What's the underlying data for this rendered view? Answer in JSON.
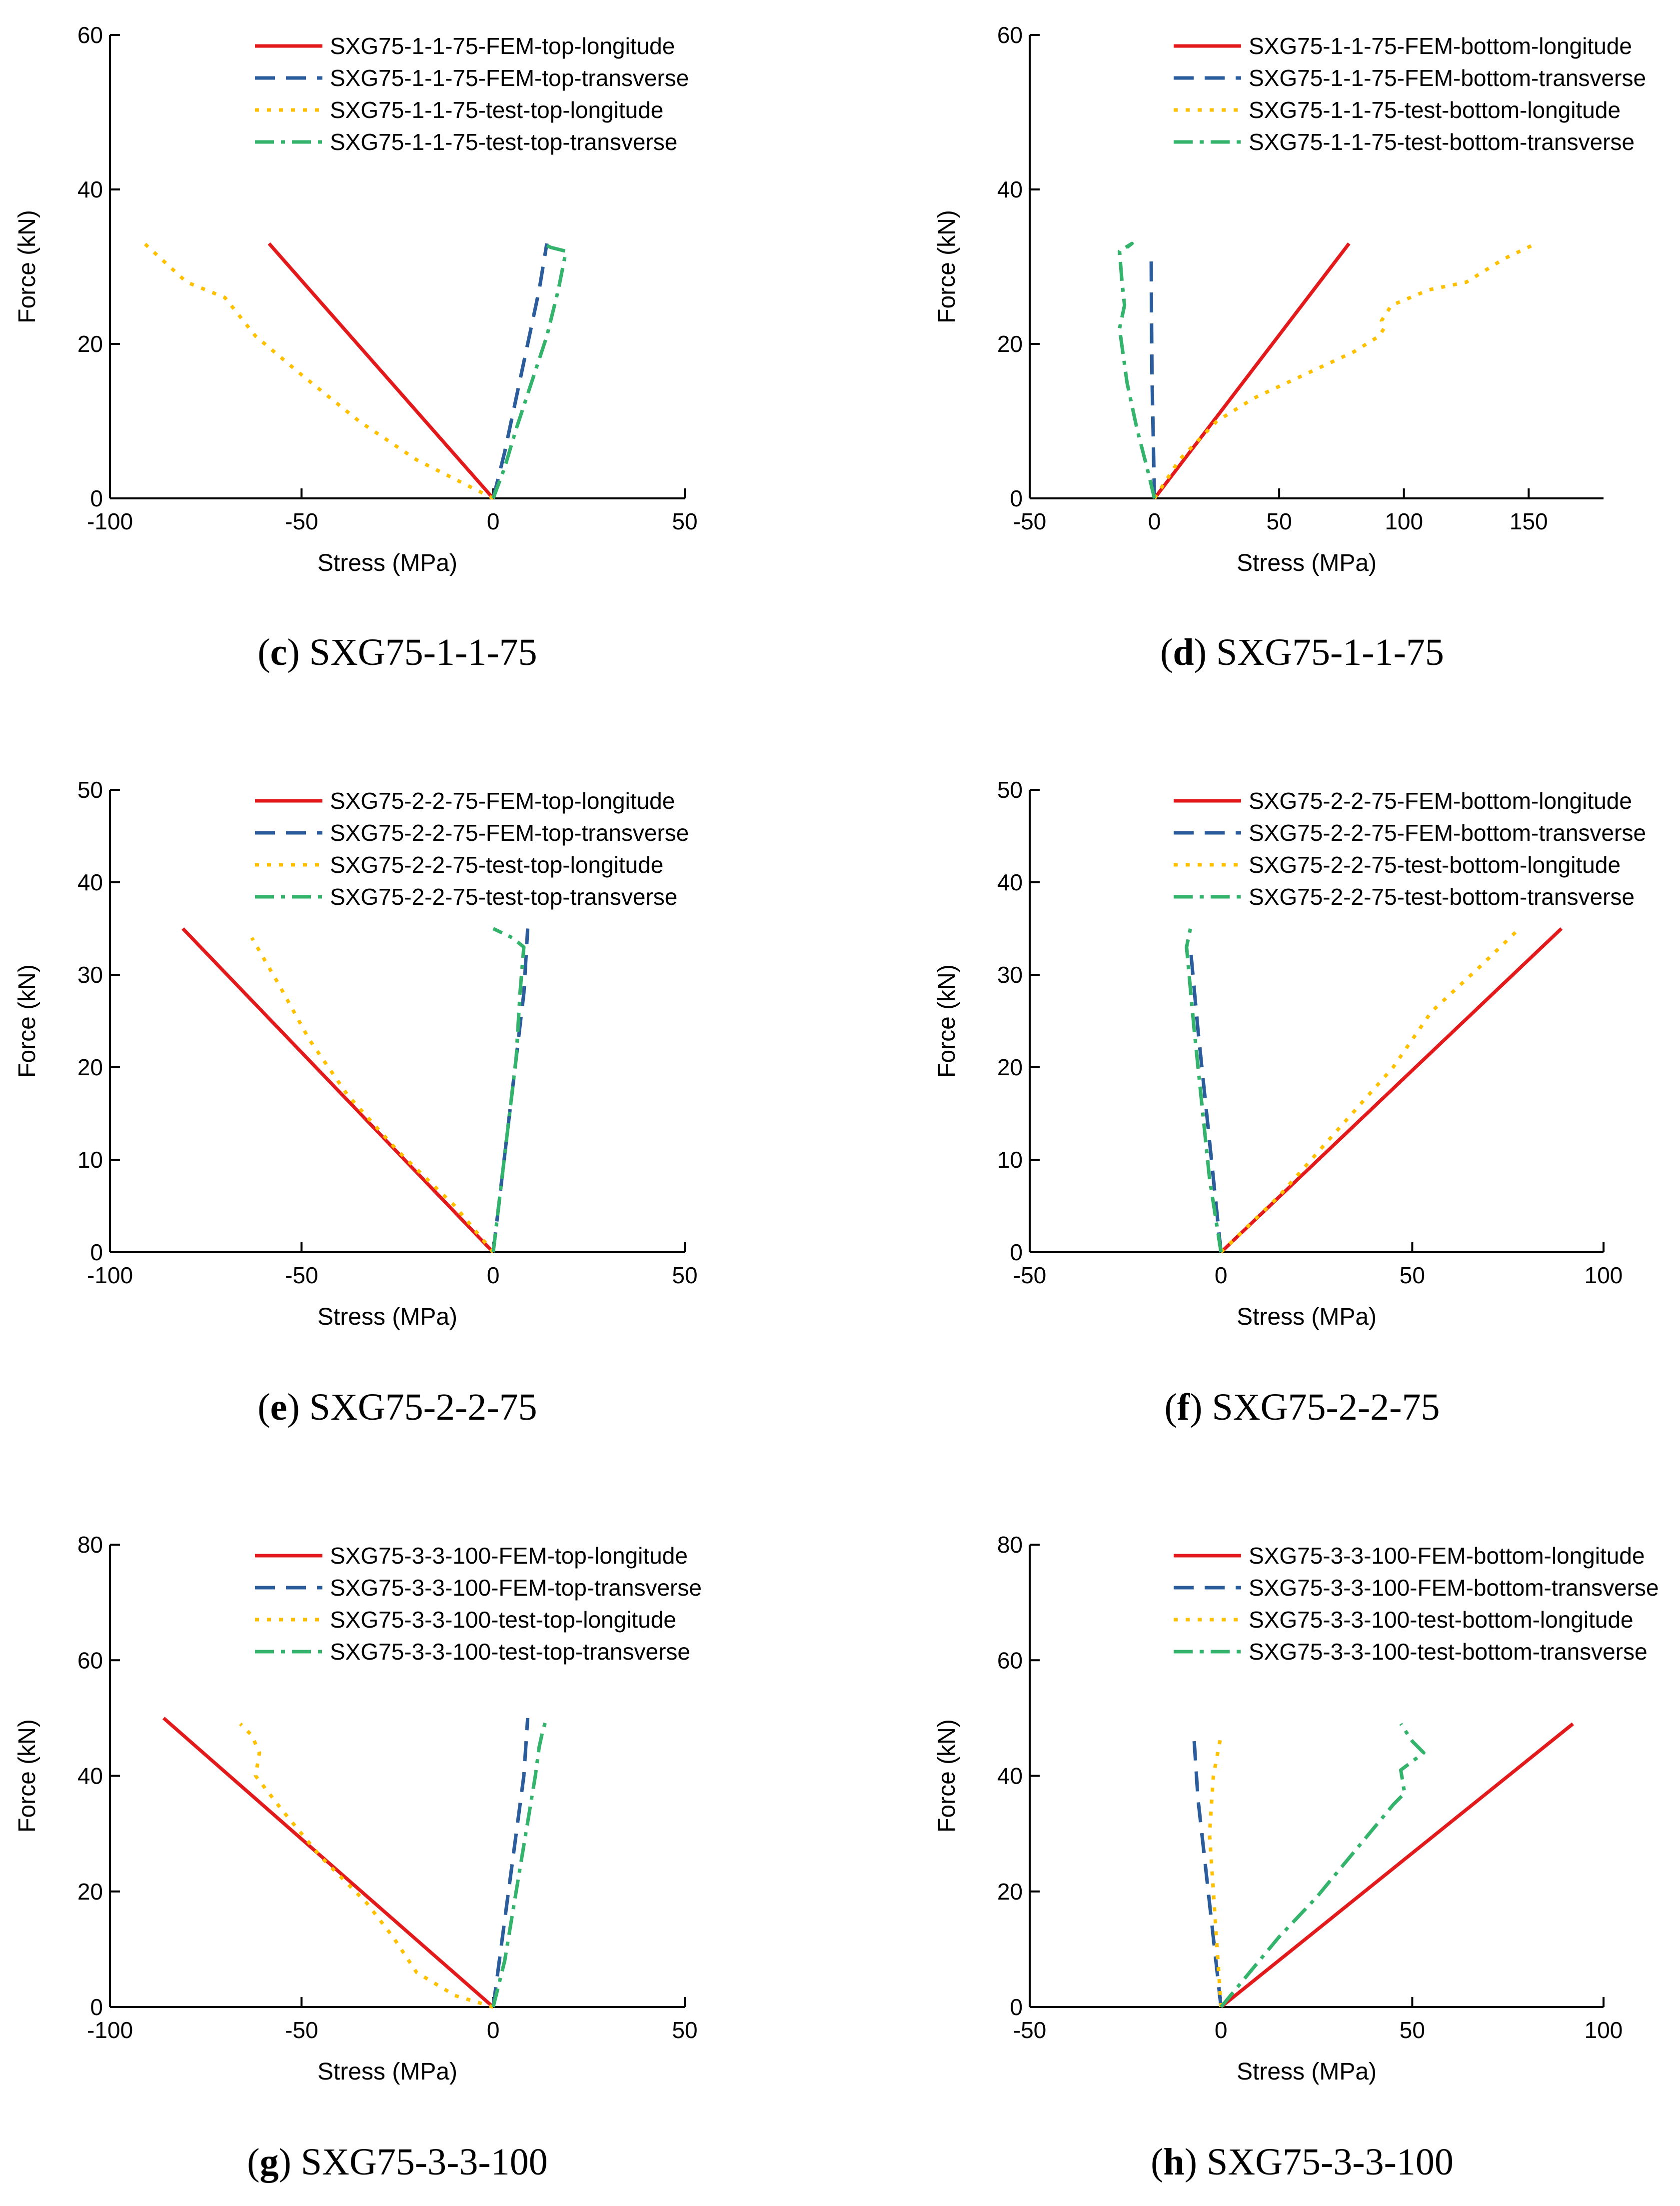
{
  "styles": {
    "FEM-longitude": {
      "color": "#e31a1c",
      "dash": "none"
    },
    "FEM-transverse": {
      "color": "#2b5d9c",
      "dash": "40,22"
    },
    "test-longitude": {
      "color": "#ffc000",
      "dash": "8,16"
    },
    "test-transverse": {
      "color": "#33b36b",
      "dash": "38,14,8,14"
    }
  },
  "chart_data": [
    {
      "type": "line",
      "caption_letter": "c",
      "caption_text": "SXG75-1-1-75",
      "xlabel": "Stress (MPa)",
      "ylabel": "Force (kN)",
      "xlim": [
        -100,
        50
      ],
      "ylim": [
        0,
        60
      ],
      "xticks": [
        -100,
        -50,
        0,
        50
      ],
      "yticks": [
        0,
        20,
        40,
        60
      ],
      "legend": "top-right",
      "series": [
        {
          "name": "SXG75-1-1-75-FEM-top-longitude",
          "style": "FEM-longitude",
          "x": [
            0,
            -58.5
          ],
          "y": [
            0,
            33
          ]
        },
        {
          "name": "SXG75-1-1-75-FEM-top-transverse",
          "style": "FEM-transverse",
          "x": [
            0,
            3,
            6,
            9,
            12,
            14
          ],
          "y": [
            0,
            6,
            13,
            20,
            27,
            33
          ]
        },
        {
          "name": "SXG75-1-1-75-test-top-longitude",
          "style": "test-longitude",
          "x": [
            0,
            -8,
            -20,
            -35,
            -50,
            -62,
            -70,
            -80,
            -91
          ],
          "y": [
            0,
            2,
            5,
            10,
            16,
            21,
            26,
            28,
            33
          ]
        },
        {
          "name": "SXG75-1-1-75-test-top-transverse",
          "style": "test-transverse",
          "x": [
            0,
            3,
            6,
            10,
            14,
            17,
            19,
            15,
            13
          ],
          "y": [
            0,
            4,
            9,
            15,
            21,
            27,
            32,
            32.5,
            33
          ]
        }
      ]
    },
    {
      "type": "line",
      "caption_letter": "d",
      "caption_text": "SXG75-1-1-75",
      "xlabel": "Stress (MPa)",
      "ylabel": "Force (kN)",
      "xlim": [
        -50,
        180
      ],
      "ylim": [
        0,
        60
      ],
      "xticks": [
        -50,
        0,
        50,
        100,
        150
      ],
      "yticks": [
        0,
        20,
        40,
        60
      ],
      "legend": "top-right",
      "series": [
        {
          "name": "SXG75-1-1-75-FEM-bottom-longitude",
          "style": "FEM-longitude",
          "x": [
            0,
            78
          ],
          "y": [
            0,
            33
          ]
        },
        {
          "name": "SXG75-1-1-75-FEM-bottom-transverse",
          "style": "FEM-transverse",
          "x": [
            0,
            -0.5,
            -1,
            -1.2,
            -1.3
          ],
          "y": [
            0,
            8,
            16,
            24,
            31
          ]
        },
        {
          "name": "SXG75-1-1-75-test-bottom-longitude",
          "style": "test-longitude",
          "x": [
            0,
            10,
            25,
            40,
            60,
            80,
            90,
            92,
            91,
            95,
            110,
            125,
            140,
            153
          ],
          "y": [
            0,
            5,
            10,
            13,
            16,
            19,
            21,
            22,
            23,
            25,
            27,
            28,
            31,
            33
          ]
        },
        {
          "name": "SXG75-1-1-75-test-bottom-transverse",
          "style": "test-transverse",
          "x": [
            0,
            -3,
            -7,
            -11,
            -14,
            -12,
            -13,
            -14,
            -9,
            -11
          ],
          "y": [
            0,
            4,
            9,
            15,
            22,
            25,
            28,
            32,
            33,
            32.5
          ]
        }
      ]
    },
    {
      "type": "line",
      "caption_letter": "e",
      "caption_text": "SXG75-2-2-75",
      "xlabel": "Stress (MPa)",
      "ylabel": "Force (kN)",
      "xlim": [
        -100,
        50
      ],
      "ylim": [
        0,
        50
      ],
      "xticks": [
        -100,
        -50,
        0,
        50
      ],
      "yticks": [
        0,
        10,
        20,
        30,
        40,
        50
      ],
      "legend": "top-right",
      "series": [
        {
          "name": "SXG75-2-2-75-FEM-top-longitude",
          "style": "FEM-longitude",
          "x": [
            0,
            -81
          ],
          "y": [
            0,
            35
          ]
        },
        {
          "name": "SXG75-2-2-75-FEM-top-transverse",
          "style": "FEM-transverse",
          "x": [
            0,
            2,
            4,
            6,
            8,
            9
          ],
          "y": [
            0,
            7,
            14,
            21,
            28,
            35
          ]
        },
        {
          "name": "SXG75-2-2-75-test-top-longitude",
          "style": "test-longitude",
          "x": [
            0,
            -10,
            -25,
            -38,
            -48,
            -56,
            -63
          ],
          "y": [
            0,
            5,
            11,
            17,
            23,
            29,
            34
          ]
        },
        {
          "name": "SXG75-2-2-75-test-top-transverse",
          "style": "test-transverse",
          "x": [
            0,
            2,
            4,
            6,
            7,
            8,
            5,
            0
          ],
          "y": [
            0,
            7,
            14,
            21,
            28,
            33,
            34,
            35
          ]
        }
      ]
    },
    {
      "type": "line",
      "caption_letter": "f",
      "caption_text": "SXG75-2-2-75",
      "xlabel": "Stress (MPa)",
      "ylabel": "Force (kN)",
      "xlim": [
        -50,
        100
      ],
      "ylim": [
        0,
        50
      ],
      "xticks": [
        -50,
        0,
        50,
        100
      ],
      "yticks": [
        0,
        10,
        20,
        30,
        40,
        50
      ],
      "legend": "top-right",
      "series": [
        {
          "name": "SXG75-2-2-75-FEM-bottom-longitude",
          "style": "FEM-longitude",
          "x": [
            0,
            89
          ],
          "y": [
            0,
            35
          ]
        },
        {
          "name": "SXG75-2-2-75-FEM-bottom-transverse",
          "style": "FEM-transverse",
          "x": [
            0,
            -2,
            -4,
            -6,
            -8
          ],
          "y": [
            0,
            8,
            16,
            24,
            33
          ]
        },
        {
          "name": "SXG75-2-2-75-test-bottom-longitude",
          "style": "test-longitude",
          "x": [
            0,
            15,
            30,
            45,
            55,
            68,
            78
          ],
          "y": [
            0,
            6,
            13,
            20,
            26,
            31,
            35
          ]
        },
        {
          "name": "SXG75-2-2-75-test-bottom-transverse",
          "style": "test-transverse",
          "x": [
            0,
            -3,
            -5,
            -7,
            -9,
            -8
          ],
          "y": [
            0,
            8,
            16,
            24,
            33,
            35
          ]
        }
      ]
    },
    {
      "type": "line",
      "caption_letter": "g",
      "caption_text": "SXG75-3-3-100",
      "xlabel": "Stress (MPa)",
      "ylabel": "Force (kN)",
      "xlim": [
        -100,
        50
      ],
      "ylim": [
        0,
        80
      ],
      "xticks": [
        -100,
        -50,
        0,
        50
      ],
      "yticks": [
        0,
        20,
        40,
        60,
        80
      ],
      "legend": "top-right",
      "series": [
        {
          "name": "SXG75-3-3-100-FEM-top-longitude",
          "style": "FEM-longitude",
          "x": [
            0,
            -86
          ],
          "y": [
            0,
            50
          ]
        },
        {
          "name": "SXG75-3-3-100-FEM-top-transverse",
          "style": "FEM-transverse",
          "x": [
            0,
            2,
            4,
            6,
            8,
            9
          ],
          "y": [
            0,
            10,
            20,
            30,
            40,
            50
          ]
        },
        {
          "name": "SXG75-3-3-100-test-top-longitude",
          "style": "test-longitude",
          "x": [
            0,
            -10,
            -20,
            -26,
            -33,
            -45,
            -55,
            -62,
            -61,
            -63,
            -66
          ],
          "y": [
            0,
            2,
            6,
            12,
            18,
            26,
            34,
            40,
            44,
            47,
            49
          ]
        },
        {
          "name": "SXG75-3-3-100-test-top-transverse",
          "style": "test-transverse",
          "x": [
            0,
            3,
            5,
            7,
            9,
            11,
            12,
            13,
            14
          ],
          "y": [
            0,
            8,
            16,
            24,
            32,
            40,
            45,
            48,
            50
          ]
        }
      ]
    },
    {
      "type": "line",
      "caption_letter": "h",
      "caption_text": "SXG75-3-3-100",
      "xlabel": "Stress (MPa)",
      "ylabel": "Force (kN)",
      "xlim": [
        -50,
        100
      ],
      "ylim": [
        0,
        80
      ],
      "xticks": [
        -50,
        0,
        50,
        100
      ],
      "yticks": [
        0,
        20,
        40,
        60,
        80
      ],
      "legend": "top-right",
      "series": [
        {
          "name": "SXG75-3-3-100-FEM-bottom-longitude",
          "style": "FEM-longitude",
          "x": [
            0,
            92
          ],
          "y": [
            0,
            49
          ]
        },
        {
          "name": "SXG75-3-3-100-FEM-bottom-transverse",
          "style": "FEM-transverse",
          "x": [
            0,
            -2,
            -4,
            -6,
            -7
          ],
          "y": [
            0,
            12,
            24,
            36,
            46
          ]
        },
        {
          "name": "SXG75-3-3-100-test-bottom-longitude",
          "style": "test-longitude",
          "x": [
            0,
            -1,
            -2,
            -3,
            -2,
            0
          ],
          "y": [
            0,
            10,
            20,
            30,
            40,
            47
          ]
        },
        {
          "name": "SXG75-3-3-100-test-bottom-transverse",
          "style": "test-transverse",
          "x": [
            0,
            5,
            15,
            25,
            35,
            45,
            48,
            47,
            53,
            50,
            48,
            47
          ],
          "y": [
            0,
            4,
            12,
            19,
            27,
            35,
            37,
            41,
            44,
            46,
            48,
            49
          ]
        }
      ]
    }
  ]
}
